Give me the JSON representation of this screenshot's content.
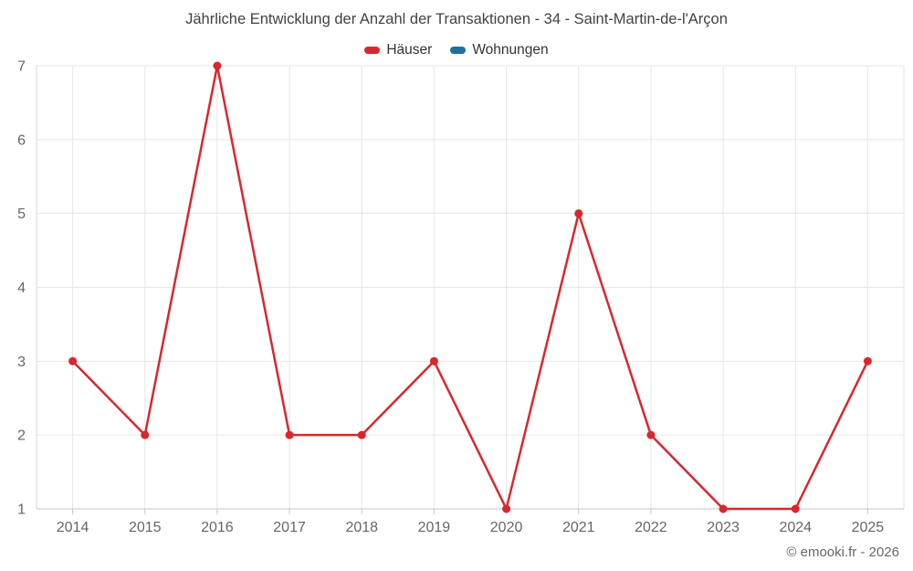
{
  "chart_data": {
    "type": "line",
    "title": "Jährliche Entwicklung der Anzahl der Transaktionen - 34 - Saint-Martin-de-l'Arçon",
    "categories": [
      "2014",
      "2015",
      "2016",
      "2017",
      "2018",
      "2019",
      "2020",
      "2021",
      "2022",
      "2023",
      "2024",
      "2025"
    ],
    "series": [
      {
        "name": "Häuser",
        "color": "#d8282d",
        "values": [
          3,
          2,
          7,
          2,
          2,
          3,
          1,
          5,
          2,
          1,
          1,
          3
        ]
      },
      {
        "name": "Wohnungen",
        "color": "#1d6fa3",
        "values": []
      }
    ],
    "ylim": [
      1,
      7
    ],
    "yticks": [
      1,
      2,
      3,
      4,
      5,
      6,
      7
    ],
    "grid": true,
    "legend_position": "top",
    "xlabel": "",
    "ylabel": ""
  },
  "colors": {
    "grid_line": "#e6e6e6",
    "axis_line": "#c6c6c6",
    "left_axis_line": "#d9d9d9",
    "tick_label": "#666666"
  },
  "copyright": "© emooki.fr - 2026"
}
